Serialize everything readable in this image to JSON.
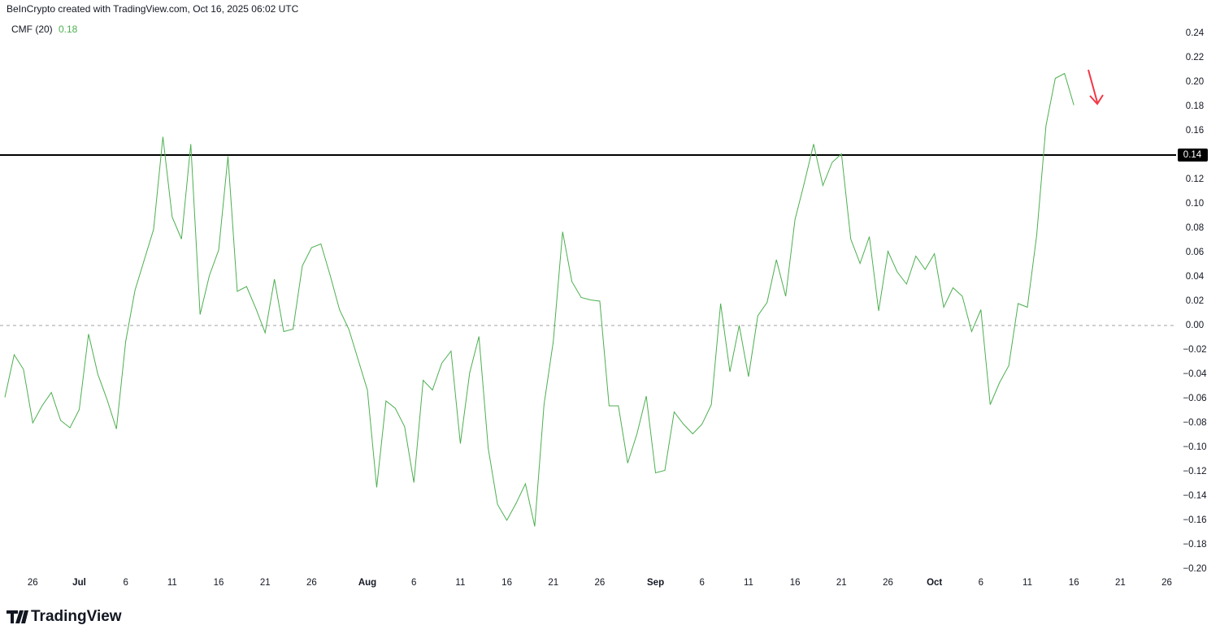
{
  "chart_data": {
    "type": "line",
    "title": "BeInCrypto created with TradingView.com, Oct 16, 2025 06:02 UTC",
    "brand": "TradingView",
    "series": [
      {
        "name": "CMF (20)",
        "color": "#4caf50",
        "last_value": 0.18,
        "values": [
          -0.059,
          -0.024,
          -0.036,
          -0.08,
          -0.066,
          -0.055,
          -0.078,
          -0.084,
          -0.069,
          -0.007,
          -0.04,
          -0.061,
          -0.085,
          -0.013,
          0.029,
          0.054,
          0.079,
          0.155,
          0.089,
          0.071,
          0.149,
          0.009,
          0.041,
          0.062,
          0.139,
          0.028,
          0.032,
          0.014,
          -0.006,
          0.038,
          -0.005,
          -0.003,
          0.049,
          0.064,
          0.067,
          0.041,
          0.013,
          -0.003,
          -0.028,
          -0.053,
          -0.133,
          -0.062,
          -0.068,
          -0.083,
          -0.129,
          -0.045,
          -0.053,
          -0.031,
          -0.021,
          -0.097,
          -0.039,
          -0.009,
          -0.101,
          -0.147,
          -0.16,
          -0.146,
          -0.13,
          -0.165,
          -0.065,
          -0.013,
          0.077,
          0.036,
          0.023,
          0.021,
          0.02,
          -0.066,
          -0.066,
          -0.113,
          -0.089,
          -0.058,
          -0.121,
          -0.119,
          -0.071,
          -0.081,
          -0.089,
          -0.081,
          -0.065,
          0.018,
          -0.038,
          0.0,
          -0.042,
          0.008,
          0.019,
          0.054,
          0.024,
          0.087,
          0.117,
          0.149,
          0.115,
          0.134,
          0.141,
          0.071,
          0.051,
          0.073,
          0.012,
          0.061,
          0.044,
          0.034,
          0.057,
          0.046,
          0.059,
          0.015,
          0.031,
          0.024,
          -0.005,
          0.013,
          -0.065,
          -0.047,
          -0.033,
          0.018,
          0.015,
          0.074,
          0.164,
          0.203,
          0.207,
          0.181
        ]
      }
    ],
    "x": [
      "2025-06-23",
      "2025-06-24",
      "2025-06-25",
      "2025-06-26",
      "2025-06-27",
      "2025-06-28",
      "2025-06-29",
      "2025-06-30",
      "2025-07-01",
      "2025-07-02",
      "2025-07-03",
      "2025-07-04",
      "2025-07-05",
      "2025-07-06",
      "2025-07-07",
      "2025-07-08",
      "2025-07-09",
      "2025-07-10",
      "2025-07-11",
      "2025-07-12",
      "2025-07-13",
      "2025-07-14",
      "2025-07-15",
      "2025-07-16",
      "2025-07-17",
      "2025-07-18",
      "2025-07-19",
      "2025-07-20",
      "2025-07-21",
      "2025-07-22",
      "2025-07-23",
      "2025-07-24",
      "2025-07-25",
      "2025-07-26",
      "2025-07-27",
      "2025-07-28",
      "2025-07-29",
      "2025-07-30",
      "2025-07-31",
      "2025-08-01",
      "2025-08-02",
      "2025-08-03",
      "2025-08-04",
      "2025-08-05",
      "2025-08-06",
      "2025-08-07",
      "2025-08-08",
      "2025-08-09",
      "2025-08-10",
      "2025-08-11",
      "2025-08-12",
      "2025-08-13",
      "2025-08-14",
      "2025-08-15",
      "2025-08-16",
      "2025-08-17",
      "2025-08-18",
      "2025-08-19",
      "2025-08-20",
      "2025-08-21",
      "2025-08-22",
      "2025-08-23",
      "2025-08-24",
      "2025-08-25",
      "2025-08-26",
      "2025-08-27",
      "2025-08-28",
      "2025-08-29",
      "2025-08-30",
      "2025-08-31",
      "2025-09-01",
      "2025-09-02",
      "2025-09-03",
      "2025-09-04",
      "2025-09-05",
      "2025-09-06",
      "2025-09-07",
      "2025-09-08",
      "2025-09-09",
      "2025-09-10",
      "2025-09-11",
      "2025-09-12",
      "2025-09-13",
      "2025-09-14",
      "2025-09-15",
      "2025-09-16",
      "2025-09-17",
      "2025-09-18",
      "2025-09-19",
      "2025-09-20",
      "2025-09-21",
      "2025-09-22",
      "2025-09-23",
      "2025-09-24",
      "2025-09-25",
      "2025-09-26",
      "2025-09-27",
      "2025-09-28",
      "2025-09-29",
      "2025-09-30",
      "2025-10-01",
      "2025-10-02",
      "2025-10-03",
      "2025-10-04",
      "2025-10-05",
      "2025-10-06",
      "2025-10-07",
      "2025-10-08",
      "2025-10-09",
      "2025-10-10",
      "2025-10-11",
      "2025-10-12",
      "2025-10-13",
      "2025-10-14",
      "2025-10-15",
      "2025-10-16"
    ],
    "xlim": [
      "2025-06-23",
      "2025-10-27"
    ],
    "xticks": [
      {
        "value": "2025-06-26",
        "label": "26"
      },
      {
        "value": "2025-07-01",
        "label": "Jul"
      },
      {
        "value": "2025-07-06",
        "label": "6"
      },
      {
        "value": "2025-07-11",
        "label": "11"
      },
      {
        "value": "2025-07-16",
        "label": "16"
      },
      {
        "value": "2025-07-21",
        "label": "21"
      },
      {
        "value": "2025-07-26",
        "label": "26"
      },
      {
        "value": "2025-08-01",
        "label": "Aug"
      },
      {
        "value": "2025-08-06",
        "label": "6"
      },
      {
        "value": "2025-08-11",
        "label": "11"
      },
      {
        "value": "2025-08-16",
        "label": "16"
      },
      {
        "value": "2025-08-21",
        "label": "21"
      },
      {
        "value": "2025-08-26",
        "label": "26"
      },
      {
        "value": "2025-09-01",
        "label": "Sep"
      },
      {
        "value": "2025-09-06",
        "label": "6"
      },
      {
        "value": "2025-09-11",
        "label": "11"
      },
      {
        "value": "2025-09-16",
        "label": "16"
      },
      {
        "value": "2025-09-21",
        "label": "21"
      },
      {
        "value": "2025-09-26",
        "label": "26"
      },
      {
        "value": "2025-10-01",
        "label": "Oct"
      },
      {
        "value": "2025-10-06",
        "label": "6"
      },
      {
        "value": "2025-10-11",
        "label": "11"
      },
      {
        "value": "2025-10-16",
        "label": "16"
      },
      {
        "value": "2025-10-21",
        "label": "21"
      },
      {
        "value": "2025-10-26",
        "label": "26"
      }
    ],
    "ylim": [
      -0.2,
      0.24
    ],
    "yticks": [
      {
        "value": 0.24,
        "label": "0.24"
      },
      {
        "value": 0.22,
        "label": "0.22"
      },
      {
        "value": 0.2,
        "label": "0.20"
      },
      {
        "value": 0.18,
        "label": "0.18"
      },
      {
        "value": 0.16,
        "label": "0.16"
      },
      {
        "value": 0.14,
        "label": "0.14"
      },
      {
        "value": 0.12,
        "label": "0.12"
      },
      {
        "value": 0.1,
        "label": "0.10"
      },
      {
        "value": 0.08,
        "label": "0.08"
      },
      {
        "value": 0.06,
        "label": "0.06"
      },
      {
        "value": 0.04,
        "label": "0.04"
      },
      {
        "value": 0.02,
        "label": "0.02"
      },
      {
        "value": 0,
        "label": "0.00"
      },
      {
        "value": -0.02,
        "label": "−0.02"
      },
      {
        "value": -0.04,
        "label": "−0.04"
      },
      {
        "value": -0.06,
        "label": "−0.06"
      },
      {
        "value": -0.08,
        "label": "−0.08"
      },
      {
        "value": -0.1,
        "label": "−0.10"
      },
      {
        "value": -0.12,
        "label": "−0.12"
      },
      {
        "value": -0.14,
        "label": "−0.14"
      },
      {
        "value": -0.16,
        "label": "−0.16"
      },
      {
        "value": -0.18,
        "label": "−0.18"
      },
      {
        "value": -0.2,
        "label": "−0.20"
      }
    ],
    "hline": {
      "value": 0.14
    },
    "zero_line": {
      "value": 0
    }
  }
}
